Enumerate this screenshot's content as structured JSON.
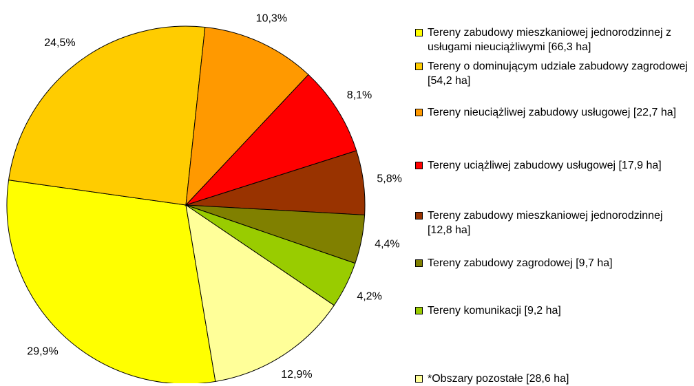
{
  "chart_data": {
    "type": "pie",
    "categories": [
      "Tereny zabudowy mieszkaniowej jednorodzinnej z usługami nieuciążliwymi [66,3 ha]",
      "Tereny o dominującym udziale zabudowy zagrodowej [54,2 ha]",
      "Tereny nieuciążliwej zabudowy usługowej [22,7 ha]",
      "Tereny uciążliwej zabudowy usługowej [17,9 ha]",
      "Tereny zabudowy mieszkaniowej jednorodzinnej [12,8 ha]",
      "Tereny zabudowy zagrodowej [9,7 ha]",
      "Tereny komunikacji [9,2 ha]",
      "*Obszary pozostałe [28,6 ha]"
    ],
    "values": [
      29.9,
      24.5,
      10.3,
      8.1,
      5.8,
      4.4,
      4.2,
      12.9
    ],
    "value_labels": [
      "29,9%",
      "24,5%",
      "10,3%",
      "8,1%",
      "5,8%",
      "4,4%",
      "4,2%",
      "12,9%"
    ],
    "colors": [
      "#FFFF00",
      "#FFCC00",
      "#FF9900",
      "#FF0000",
      "#993300",
      "#808000",
      "#99CC00",
      "#FFFF99"
    ],
    "legend": "right"
  }
}
